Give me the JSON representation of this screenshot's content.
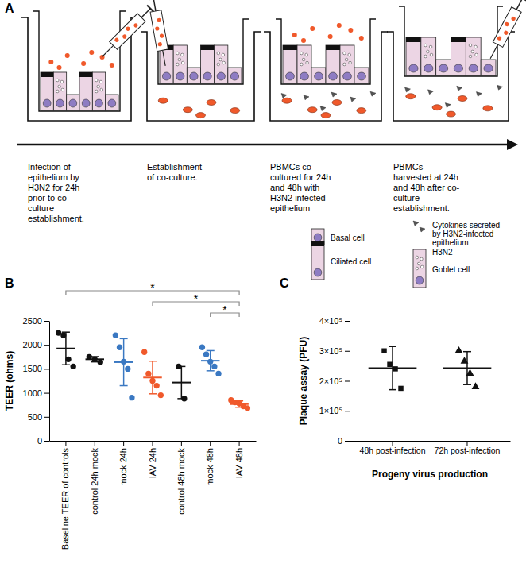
{
  "diagram": {
    "panel_label": "A",
    "steps": [
      {
        "caption": [
          "Infection of",
          "epithelium by",
          "H3N2 for 24h",
          "prior to co-",
          "culture",
          "establishment."
        ]
      },
      {
        "caption": [
          "Establishment",
          "of co-culture."
        ]
      },
      {
        "caption": [
          "PBMCs co-",
          "cultured for 24h",
          "and 48h with",
          "H3N2 infected",
          "epithelium"
        ]
      },
      {
        "caption": [
          "PBMCs",
          "harvested at 24h",
          "and 48h after co-",
          "culture",
          "establishment."
        ]
      }
    ],
    "legend": [
      {
        "icon": "basal",
        "label": [
          "Basal cell"
        ]
      },
      {
        "icon": "ciliated",
        "label": [
          "Ciliated cell"
        ]
      },
      {
        "icon": "cytokine",
        "label": [
          "Cytokines secreted",
          "by H3N2-infected",
          "epithelium"
        ]
      },
      {
        "icon": "virus",
        "label": [
          "H3N2"
        ]
      },
      {
        "icon": "goblet",
        "label": [
          "Goblet cell"
        ]
      }
    ]
  },
  "chart_data": [
    {
      "type": "dot",
      "annotations": [
        "B"
      ],
      "y_label": "TEER (ohms)",
      "categories": [
        "Baseline TEER of controls",
        "control 24h mock",
        "mock 24h",
        "IAV 24h",
        "control 48h mock",
        "mock 48h",
        "IAV 48h"
      ],
      "ylim": [
        0,
        2500
      ],
      "yticks": [
        0,
        500,
        1000,
        1500,
        2000,
        2500
      ],
      "colors": [
        "#111111",
        "#111111",
        "#3a78c2",
        "#f0592b",
        "#111111",
        "#3a78c2",
        "#f0592b"
      ],
      "marker": "circle",
      "points": [
        [
          2250,
          2200,
          1700,
          1550
        ],
        [
          1750,
          1700,
          1640
        ],
        [
          2200,
          1950,
          1650,
          1500,
          900
        ],
        [
          1850,
          1400,
          1250,
          1150,
          950
        ],
        [
          1550,
          880
        ],
        [
          1950,
          1800,
          1650,
          1550,
          1400
        ],
        [
          850,
          800,
          780,
          720,
          680
        ]
      ],
      "mean": [
        1925,
        1700,
        1640,
        1320,
        1215,
        1670,
        766
      ],
      "sd": [
        340,
        55,
        490,
        340,
        335,
        210,
        66
      ],
      "significance": [
        {
          "from": 0,
          "to": 6,
          "label": "*"
        },
        {
          "from": 3,
          "to": 6,
          "label": "*"
        },
        {
          "from": 5,
          "to": 6,
          "label": "*"
        }
      ]
    },
    {
      "type": "dot",
      "annotations": [
        "C"
      ],
      "y_label": "Plaque assay (PFU)",
      "x_label": "Progeny virus production",
      "categories": [
        "48h post-infection",
        "72h post-infection"
      ],
      "ylim": [
        0,
        400000
      ],
      "yticks": [
        0,
        {
          "value": 100000,
          "label": "1×10⁵"
        },
        {
          "value": 200000,
          "label": "2×10⁵"
        },
        {
          "value": 300000,
          "label": "3×10⁵"
        },
        {
          "value": 400000,
          "label": "4×10⁵"
        }
      ],
      "colors": [
        "#111111",
        "#111111"
      ],
      "marker": [
        "square",
        "triangle"
      ],
      "points": [
        [
          300000,
          255000,
          240000,
          175000
        ],
        [
          300000,
          265000,
          225000,
          180000
        ]
      ],
      "mean": [
        242500,
        242500
      ],
      "sd": [
        72000,
        55000
      ]
    }
  ]
}
